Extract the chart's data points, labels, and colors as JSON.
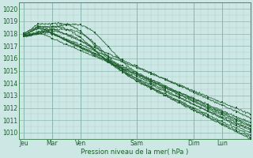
{
  "bg_color": "#cde8e4",
  "grid_color_minor": "#aacfc9",
  "grid_color_major": "#88b8b0",
  "line_color": "#1a5c2a",
  "marker_color": "#1a5c2a",
  "xlabel_text": "Pression niveau de la mer( hPa )",
  "x_tick_labels": [
    "Jeu",
    "Mar",
    "Ven",
    "Sam",
    "Dim",
    "Lun"
  ],
  "x_tick_positions": [
    0,
    24,
    48,
    96,
    144,
    168
  ],
  "ylim": [
    1009.5,
    1020.5
  ],
  "xlim": [
    -4,
    192
  ],
  "yticks": [
    1010,
    1011,
    1012,
    1013,
    1014,
    1015,
    1016,
    1017,
    1018,
    1019,
    1020
  ],
  "font_color": "#1a5c2a",
  "spine_color": "#4a8c5c",
  "figsize": [
    3.2,
    2.0
  ],
  "dpi": 100
}
